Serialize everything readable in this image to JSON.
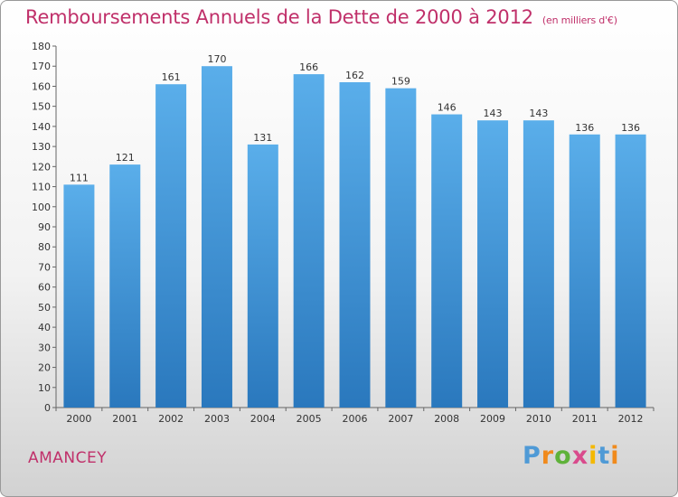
{
  "header": {
    "title": "Remboursements Annuels de la Dette de 2000 à 2012",
    "subtitle": "(en milliers d'€)"
  },
  "footer": {
    "town": "AMANCEY",
    "logo_letters": [
      "P",
      "r",
      "o",
      "x",
      "i",
      "t",
      "i"
    ],
    "logo_colors": [
      "#4f9ad6",
      "#f08a1c",
      "#5fb23a",
      "#d94a8c",
      "#f4b800",
      "#4f9ad6",
      "#f08a1c"
    ]
  },
  "colors": {
    "bar_top": "#5aaeea",
    "bar_bottom": "#2a78bd",
    "text": "#333333",
    "title": "#c0306a"
  },
  "chart_data": {
    "type": "bar",
    "title": "Remboursements Annuels de la Dette de 2000 à 2012",
    "xlabel": "",
    "ylabel": "",
    "categories": [
      "2000",
      "2001",
      "2002",
      "2003",
      "2004",
      "2005",
      "2006",
      "2007",
      "2008",
      "2009",
      "2010",
      "2011",
      "2012"
    ],
    "values": [
      111,
      121,
      161,
      170,
      131,
      166,
      162,
      159,
      146,
      143,
      143,
      136,
      136
    ],
    "ylim": [
      0,
      180
    ],
    "yticks": [
      0,
      10,
      20,
      30,
      40,
      50,
      60,
      70,
      80,
      90,
      100,
      110,
      120,
      130,
      140,
      150,
      160,
      170,
      180
    ],
    "grid": false,
    "legend": "none"
  }
}
